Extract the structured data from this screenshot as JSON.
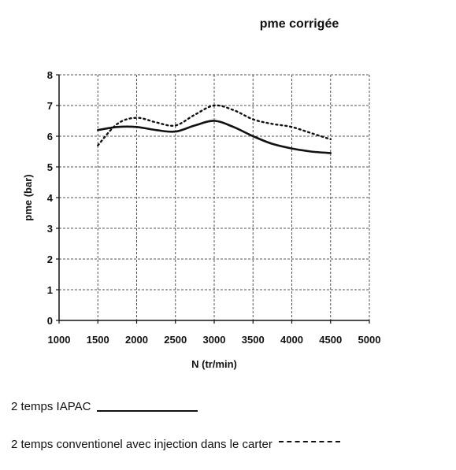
{
  "chart_data": {
    "type": "line",
    "title": "pme corrigée",
    "xlabel": "N (tr/min)",
    "ylabel": "pme (bar)",
    "xlim": [
      1000,
      5000
    ],
    "ylim": [
      0,
      8
    ],
    "xticks": [
      1000,
      1500,
      2000,
      2500,
      3000,
      3500,
      4000,
      4500,
      5000
    ],
    "yticks": [
      0,
      1,
      2,
      3,
      4,
      5,
      6,
      7,
      8
    ],
    "grid": true,
    "series": [
      {
        "name": "2 temps IAPAC",
        "style": "solid",
        "color": "#111111",
        "x": [
          1500,
          1750,
          2000,
          2250,
          2500,
          2750,
          3000,
          3250,
          3500,
          3750,
          4000,
          4250,
          4500
        ],
        "y": [
          6.2,
          6.3,
          6.3,
          6.2,
          6.15,
          6.35,
          6.5,
          6.3,
          6.0,
          5.75,
          5.6,
          5.5,
          5.45
        ]
      },
      {
        "name": "2 temps conventionel avec injection dans le carter",
        "style": "dashed",
        "color": "#111111",
        "x": [
          1500,
          1750,
          2000,
          2250,
          2500,
          2750,
          3000,
          3250,
          3500,
          3750,
          4000,
          4250,
          4500
        ],
        "y": [
          5.7,
          6.4,
          6.6,
          6.45,
          6.35,
          6.7,
          7.0,
          6.85,
          6.55,
          6.4,
          6.3,
          6.1,
          5.9
        ]
      }
    ]
  },
  "legend": {
    "iapac_label": "2 temps IAPAC",
    "conventional_label": "2 temps conventionel avec injection dans le carter"
  }
}
